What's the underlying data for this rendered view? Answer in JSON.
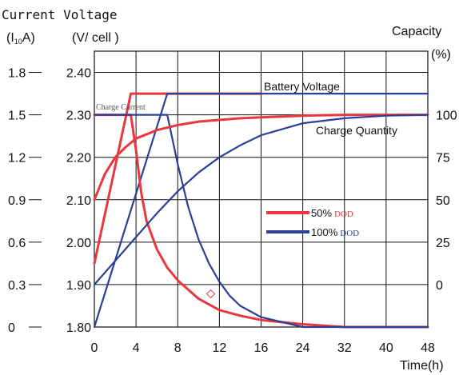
{
  "chart_data": {
    "type": "line",
    "title": "",
    "axes": {
      "current": {
        "title_line1": "Current Voltage",
        "title_line2_prefix": "(I",
        "title_line2_sub": "10",
        "title_line2_suffix": "A)",
        "ticks": [
          "1.8",
          "1.5",
          "1.2",
          "0.9",
          "0.6",
          "0.3",
          "0"
        ],
        "range": [
          0,
          1.8
        ]
      },
      "voltage": {
        "title": "(V/ cell )",
        "ticks": [
          "2.40",
          "2.30",
          "2.20",
          "2.10",
          "2.00",
          "1.90",
          "1.80"
        ],
        "range": [
          1.8,
          2.4
        ]
      },
      "capacity": {
        "title_line1": "Capacity",
        "title_line2": "(%)",
        "ticks": [
          "100",
          "75",
          "50",
          "25",
          "0"
        ],
        "range": [
          0,
          100
        ]
      },
      "time": {
        "title": "Time(h)",
        "ticks": [
          "0",
          "4",
          "8",
          "12",
          "16",
          "24",
          "32",
          "40",
          "48"
        ],
        "grid": true
      }
    },
    "annotations": {
      "battery_voltage": "Battery Voltage",
      "charge_current": "Charge Current",
      "charge_quantity": "Charge Quantity"
    },
    "legend": {
      "position": "center-right",
      "items": [
        {
          "label": "50%",
          "suffix": "DOD",
          "color": "#e8383d"
        },
        {
          "label": "100%",
          "suffix": "DOD",
          "color": "#2b3f96"
        }
      ]
    },
    "series": [
      {
        "name": "50% DOD",
        "quantity": "battery_voltage",
        "unit": "V/cell",
        "color": "#e8383d",
        "points": [
          [
            0,
            1.95
          ],
          [
            3.5,
            2.35
          ],
          [
            16,
            2.35
          ]
        ]
      },
      {
        "name": "100% DOD",
        "quantity": "battery_voltage",
        "unit": "V/cell",
        "color": "#2b3f96",
        "points": [
          [
            0,
            1.8
          ],
          [
            7,
            2.35
          ],
          [
            16,
            2.35
          ],
          [
            48,
            2.35
          ]
        ]
      },
      {
        "name": "50% DOD",
        "quantity": "charge_current",
        "unit": "I10A",
        "color": "#e8383d",
        "points": [
          [
            0,
            1.5
          ],
          [
            3.5,
            1.5
          ],
          [
            4,
            1.25
          ],
          [
            4.5,
            0.95
          ],
          [
            5,
            0.75
          ],
          [
            6,
            0.55
          ],
          [
            7,
            0.42
          ],
          [
            8,
            0.33
          ],
          [
            10,
            0.2
          ],
          [
            12,
            0.12
          ],
          [
            14,
            0.08
          ],
          [
            16,
            0.05
          ],
          [
            24,
            0.02
          ],
          [
            32,
            0.0
          ],
          [
            48,
            0.0
          ]
        ]
      },
      {
        "name": "100% DOD",
        "quantity": "charge_current",
        "unit": "I10A",
        "color": "#2b3f96",
        "points": [
          [
            0,
            1.5
          ],
          [
            7,
            1.5
          ],
          [
            8,
            1.15
          ],
          [
            9,
            0.85
          ],
          [
            10,
            0.62
          ],
          [
            11,
            0.45
          ],
          [
            12,
            0.32
          ],
          [
            13,
            0.22
          ],
          [
            14,
            0.15
          ],
          [
            16,
            0.07
          ],
          [
            24,
            0.0
          ],
          [
            48,
            0.0
          ]
        ]
      },
      {
        "name": "50% DOD",
        "quantity": "charge_quantity",
        "unit": "%",
        "color": "#e8383d",
        "points": [
          [
            0,
            50
          ],
          [
            1,
            65
          ],
          [
            2,
            75
          ],
          [
            3,
            81
          ],
          [
            4,
            86
          ],
          [
            6,
            91
          ],
          [
            8,
            94
          ],
          [
            10,
            96
          ],
          [
            12,
            97
          ],
          [
            14,
            98
          ],
          [
            16,
            98.5
          ],
          [
            24,
            99.5
          ],
          [
            32,
            100
          ],
          [
            48,
            100
          ]
        ]
      },
      {
        "name": "100% DOD",
        "quantity": "charge_quantity",
        "unit": "%",
        "color": "#2b3f96",
        "points": [
          [
            0,
            0
          ],
          [
            2,
            14
          ],
          [
            4,
            28
          ],
          [
            6,
            42
          ],
          [
            8,
            55
          ],
          [
            10,
            66
          ],
          [
            12,
            75
          ],
          [
            14,
            82
          ],
          [
            16,
            88
          ],
          [
            24,
            95
          ],
          [
            32,
            98
          ],
          [
            40,
            99.5
          ],
          [
            48,
            100
          ]
        ]
      }
    ]
  }
}
